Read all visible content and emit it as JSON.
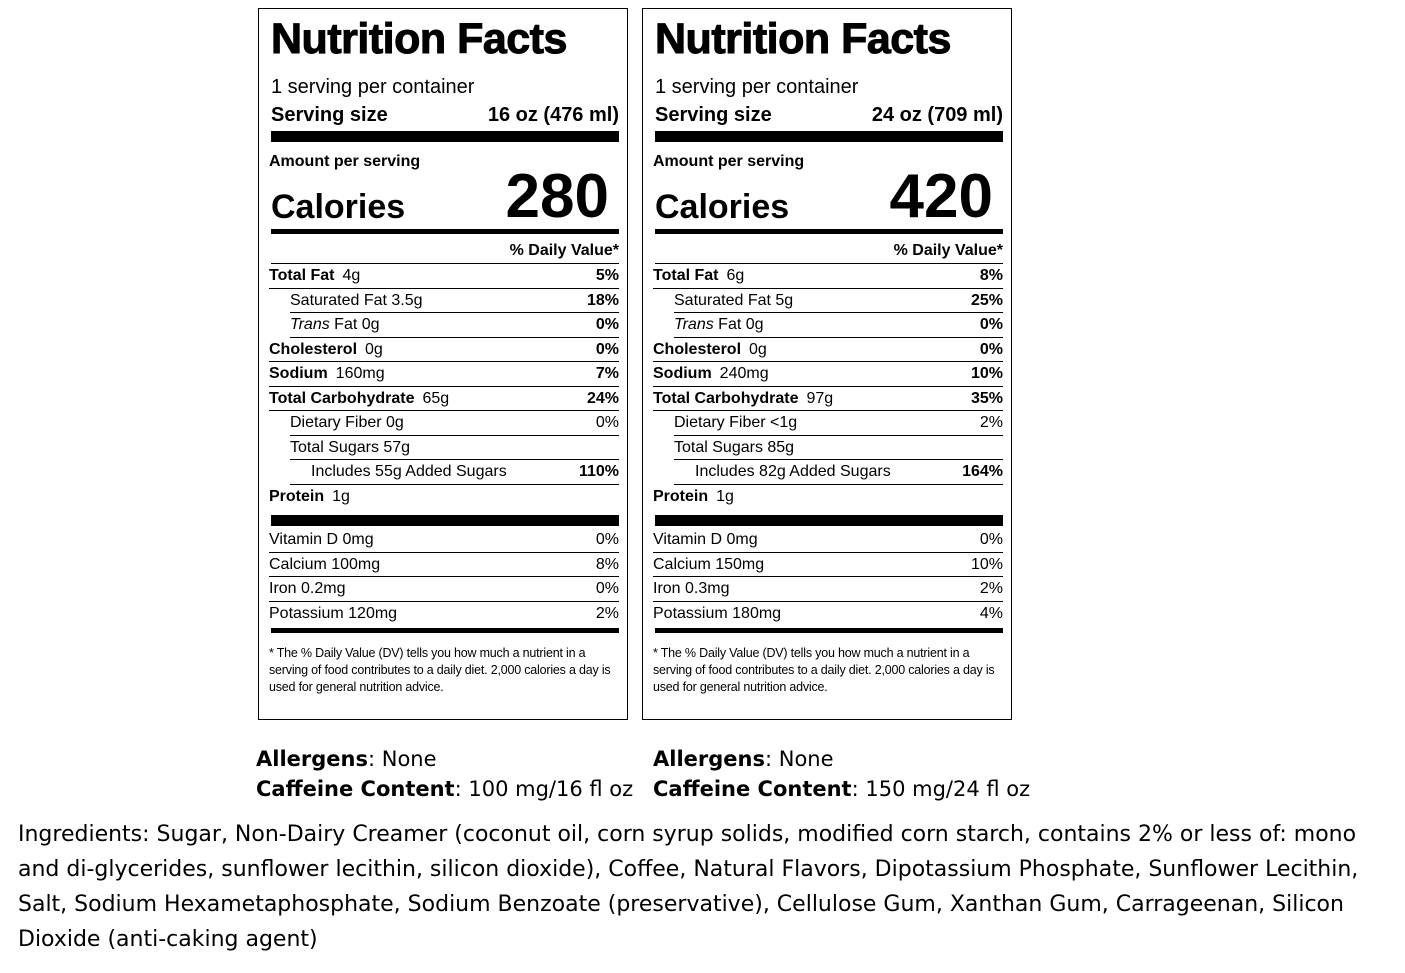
{
  "labels": [
    {
      "title": "Nutrition Facts",
      "servings": "1 serving per container",
      "serving_size_label": "Serving size",
      "serving_size_value": "16 oz (476 ml)",
      "amount_per_serving": "Amount per serving",
      "calories_label": "Calories",
      "calories": "280",
      "dv_header": "% Daily Value*",
      "nutrients": {
        "total_fat": {
          "name": "Total Fat",
          "amount": "4g",
          "dv": "5%"
        },
        "saturated_fat": {
          "name": "Saturated Fat 3.5g",
          "dv": "18%"
        },
        "trans_fat": {
          "name_italic": "Trans",
          "name": "Fat 0g",
          "dv": "0%"
        },
        "cholesterol": {
          "name": "Cholesterol",
          "amount": "0g",
          "dv": "0%"
        },
        "sodium": {
          "name": "Sodium",
          "amount": "160mg",
          "dv": "7%"
        },
        "total_carb": {
          "name": "Total Carbohydrate",
          "amount": "65g",
          "dv": "24%"
        },
        "fiber": {
          "name": "Dietary Fiber 0g",
          "dv": "0%"
        },
        "sugars": {
          "name": "Total Sugars 57g"
        },
        "added_sugars": {
          "name": "Includes 55g Added Sugars",
          "dv": "110%"
        },
        "protein": {
          "name": "Protein",
          "amount": "1g"
        }
      },
      "vitamins": {
        "vitamin_d": {
          "name": "Vitamin D  0mg",
          "dv": "0%"
        },
        "calcium": {
          "name": "Calcium  100mg",
          "dv": "8%"
        },
        "iron": {
          "name": "Iron  0.2mg",
          "dv": "0%"
        },
        "potassium": {
          "name": "Potassium  120mg",
          "dv": "2%"
        }
      },
      "footnote": "* The % Daily Value (DV) tells you how much a nutrient in a serving of food contributes to a daily diet. 2,000 calories a day is used for general nutrition advice."
    },
    {
      "title": "Nutrition Facts",
      "servings": "1 serving per container",
      "serving_size_label": "Serving size",
      "serving_size_value": "24 oz (709 ml)",
      "amount_per_serving": "Amount per serving",
      "calories_label": "Calories",
      "calories": "420",
      "dv_header": "% Daily Value*",
      "nutrients": {
        "total_fat": {
          "name": "Total Fat",
          "amount": "6g",
          "dv": "8%"
        },
        "saturated_fat": {
          "name": "Saturated Fat 5g",
          "dv": "25%"
        },
        "trans_fat": {
          "name_italic": "Trans",
          "name": "Fat 0g",
          "dv": "0%"
        },
        "cholesterol": {
          "name": "Cholesterol",
          "amount": "0g",
          "dv": "0%"
        },
        "sodium": {
          "name": "Sodium",
          "amount": "240mg",
          "dv": "10%"
        },
        "total_carb": {
          "name": "Total Carbohydrate",
          "amount": "97g",
          "dv": "35%"
        },
        "fiber": {
          "name": "Dietary Fiber <1g",
          "dv": "2%"
        },
        "sugars": {
          "name": "Total Sugars 85g"
        },
        "added_sugars": {
          "name": "Includes 82g Added Sugars",
          "dv": "164%"
        },
        "protein": {
          "name": "Protein",
          "amount": "1g"
        }
      },
      "vitamins": {
        "vitamin_d": {
          "name": "Vitamin D  0mg",
          "dv": "0%"
        },
        "calcium": {
          "name": "Calcium  150mg",
          "dv": "10%"
        },
        "iron": {
          "name": "Iron  0.3mg",
          "dv": "2%"
        },
        "potassium": {
          "name": "Potassium  180mg",
          "dv": "4%"
        }
      },
      "footnote": "* The % Daily Value (DV) tells you how much a nutrient in a serving of food contributes to a daily diet. 2,000 calories a day is used for general nutrition advice."
    }
  ],
  "extras": [
    {
      "allergens_label": "Allergens",
      "allergens_value": ": None",
      "caffeine_label": "Caffeine Content",
      "caffeine_value": ": 100 mg/16 fl oz"
    },
    {
      "allergens_label": "Allergens",
      "allergens_value": ": None",
      "caffeine_label": "Caffeine Content",
      "caffeine_value": ": 150 mg/24 fl oz"
    }
  ],
  "ingredients": "Ingredients: Sugar, Non-Dairy Creamer (coconut oil, corn syrup solids, modified corn starch, contains 2% or less of: mono and di-glycerides, sunflower lecithin, silicon dioxide), Coffee, Natural Flavors, Dipotassium Phosphate, Sunflower Lecithin, Salt, Sodium Hexametaphosphate, Sodium Benzoate (preservative), Cellulose Gum, Xanthan Gum, Carrageenan, Silicon Dioxide (anti-caking agent)"
}
